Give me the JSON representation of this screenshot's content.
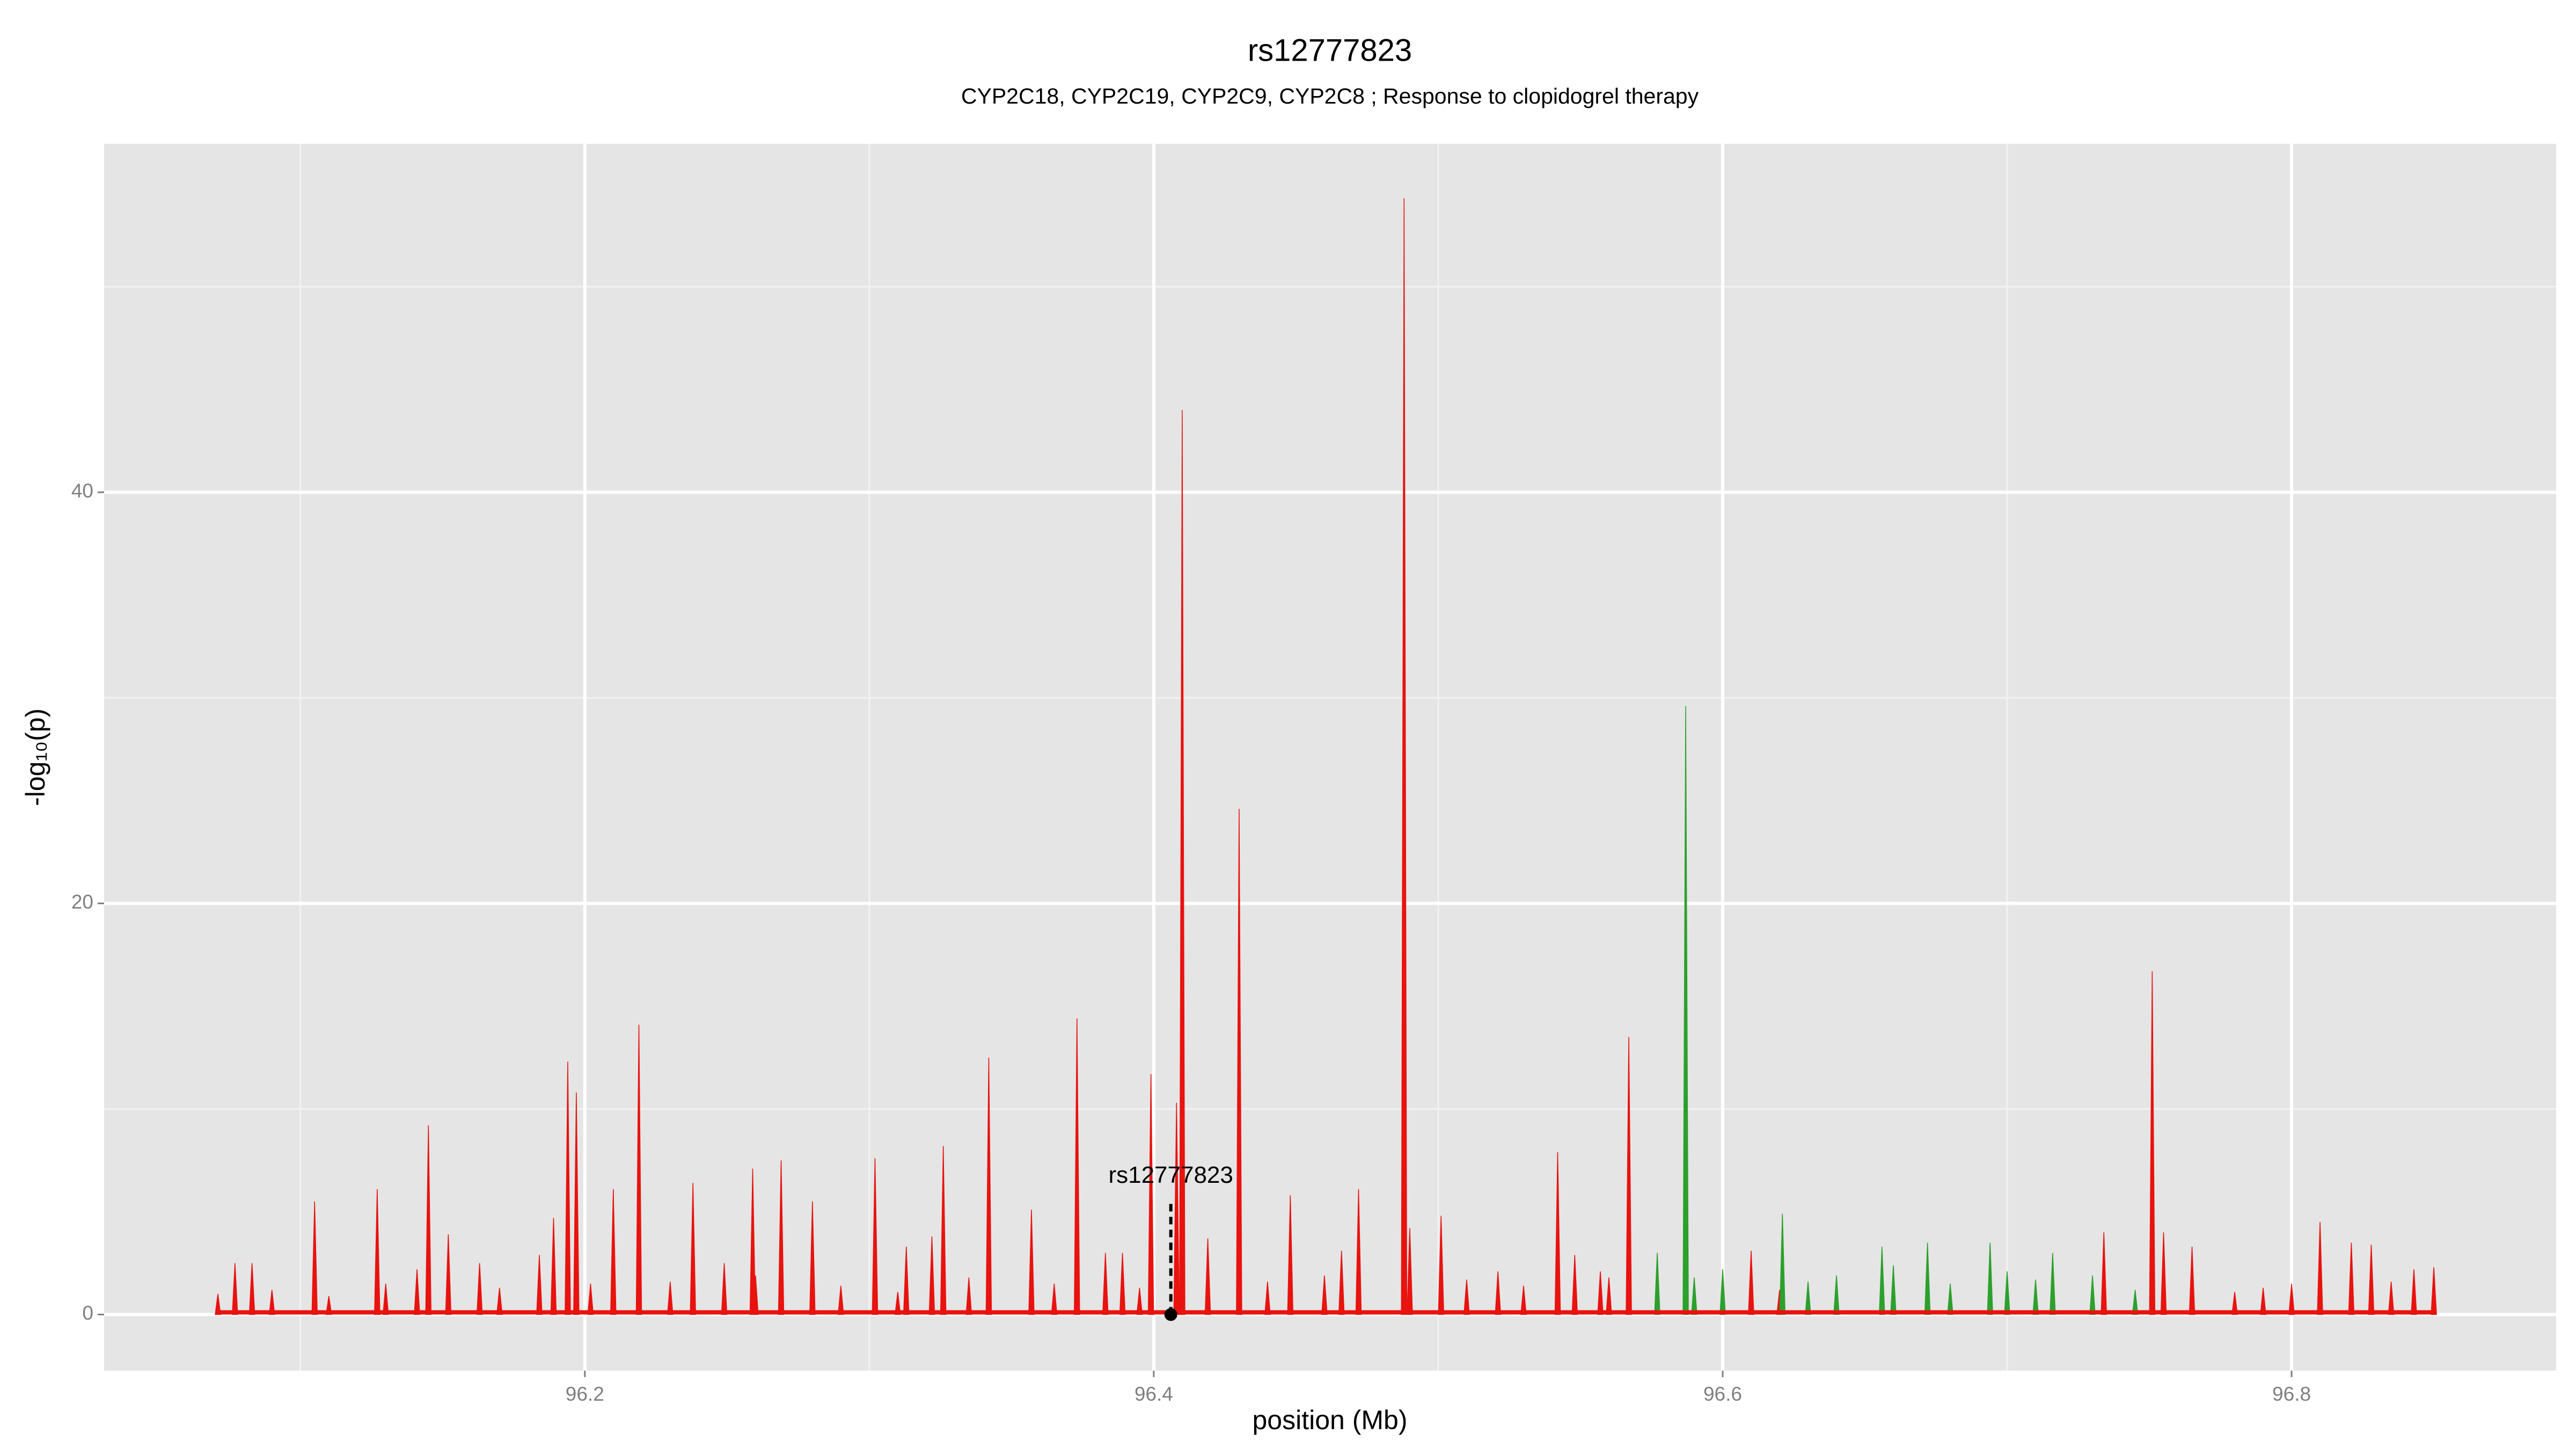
{
  "chart_data": {
    "type": "spike",
    "title": "rs12777823",
    "subtitle": "CYP2C18, CYP2C19, CYP2C9, CYP2C8 ; Response to clopidogrel therapy",
    "x_label": "position (Mb)",
    "y_label": "-log₁₀(p)",
    "xlim": [
      96.031,
      96.893
    ],
    "ylim": [
      -2.73,
      56.95
    ],
    "xticks": [
      96.2,
      96.4,
      96.6,
      96.8
    ],
    "yticks": [
      0,
      20,
      40
    ],
    "x_minor_ticks": [
      96.1,
      96.3,
      96.5,
      96.7
    ],
    "y_minor_ticks": [
      10,
      30,
      50
    ],
    "grid": true,
    "series": [
      {
        "color": "#e8130f",
        "x": [
          96.071,
          96.077,
          96.083,
          96.09,
          96.105,
          96.11,
          96.127,
          96.13,
          96.141,
          96.145,
          96.152,
          96.163,
          96.17,
          96.184,
          96.189,
          96.194,
          96.197,
          96.202,
          96.21,
          96.219,
          96.23,
          96.238,
          96.249,
          96.259,
          96.26,
          96.269,
          96.28,
          96.29,
          96.302,
          96.31,
          96.313,
          96.322,
          96.326,
          96.335,
          96.342,
          96.357,
          96.365,
          96.373,
          96.383,
          96.389,
          96.395,
          96.399,
          96.408,
          96.41,
          96.419,
          96.43,
          96.44,
          96.448,
          96.46,
          96.466,
          96.472,
          96.488,
          96.49,
          96.501,
          96.51,
          96.521,
          96.53,
          96.542,
          96.548,
          96.557,
          96.56,
          96.567,
          96.61,
          96.62,
          96.734,
          96.751,
          96.755,
          96.765,
          96.78,
          96.79,
          96.8,
          96.81,
          96.821,
          96.828,
          96.835,
          96.843,
          96.85
        ],
        "values": [
          1,
          2.5,
          2.5,
          1.2,
          5.5,
          0.9,
          6.1,
          1.5,
          2.2,
          9.2,
          3.9,
          2.5,
          1.3,
          2.9,
          4.7,
          12.3,
          10.8,
          1.5,
          6.1,
          14.1,
          1.6,
          6.4,
          2.5,
          7.1,
          1.9,
          7.5,
          5.5,
          1.4,
          7.6,
          1.1,
          3.3,
          3.8,
          8.2,
          1.8,
          12.5,
          5.1,
          1.5,
          14.4,
          3,
          3,
          1.3,
          11.7,
          10.3,
          44,
          3.7,
          24.6,
          1.6,
          5.8,
          1.9,
          3.1,
          6.1,
          54.3,
          4.2,
          4.8,
          1.7,
          2.1,
          1.4,
          7.9,
          2.9,
          2.1,
          1.8,
          13.5,
          3.1,
          1.2,
          4,
          16.7,
          4,
          3.3,
          1.1,
          1.3,
          1.5,
          4.5,
          3.5,
          3.4,
          1.6,
          2.2,
          2.3
        ]
      },
      {
        "color": "#2ca02c",
        "x": [
          96.577,
          96.587,
          96.59,
          96.6,
          96.621,
          96.63,
          96.64,
          96.656,
          96.66,
          96.672,
          96.68,
          96.694,
          96.7,
          96.71,
          96.716,
          96.73,
          96.745
        ],
        "values": [
          3,
          29.6,
          1.8,
          2.2,
          4.9,
          1.6,
          1.9,
          3.3,
          2.4,
          3.5,
          1.5,
          3.5,
          2.1,
          1.7,
          3,
          1.9,
          1.2
        ]
      }
    ],
    "annotation": {
      "label": "rs12777823",
      "x": 96.406,
      "y": 0
    }
  }
}
